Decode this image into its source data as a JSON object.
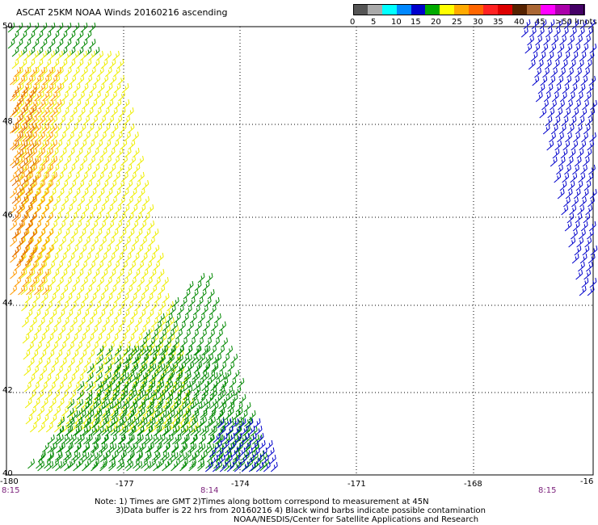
{
  "title": "ASCAT 25KM NOAA Winds 20160216 ascending",
  "legend": {
    "colors": [
      "#555555",
      "#aaaaaa",
      "#00ffff",
      "#0088ff",
      "#0000cc",
      "#00aa00",
      "#ffff00",
      "#ffaa00",
      "#ff6600",
      "#ff2222",
      "#dd0000",
      "#552200",
      "#aa6633",
      "#ff00ff",
      "#aa00aa",
      "#440066"
    ],
    "labels": [
      "0",
      "5",
      "10",
      "15",
      "20",
      "25",
      "30",
      "35",
      "40",
      "45",
      ">50 knots"
    ]
  },
  "axes": {
    "lon_ticks": [
      "-180",
      "-177",
      "-174",
      "-171",
      "-168",
      "-16"
    ],
    "lat_ticks": [
      "50",
      "48",
      "46",
      "44",
      "42",
      "40"
    ]
  },
  "time_labels": [
    "8:15",
    "8:14",
    "8:15"
  ],
  "notes": [
    "Note:  1) Times are GMT  2)Times along bottom correspond to measurement at 45N",
    "3)Data buffer is 22 hrs from 20160216  4) Black wind barbs indicate possible contamination",
    "NOAA/NESDIS/Center for Satellite Applications and Research"
  ],
  "colors": {
    "barb_blue": "#0000cc",
    "barb_green": "#008800",
    "barb_yellow": "#eeee00",
    "barb_orange": "#ff9900",
    "barb_dark_orange": "#dd6600",
    "time_label": "#7a1f7a"
  }
}
